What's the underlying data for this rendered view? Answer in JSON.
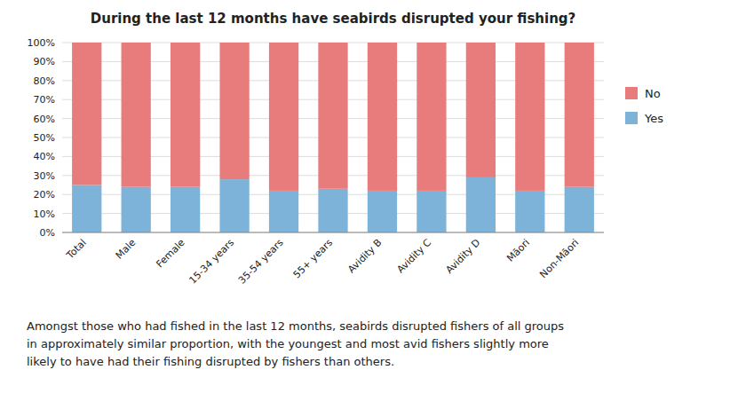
{
  "chart_data": {
    "type": "bar",
    "stacked": true,
    "title": "During the last 12 months have seabirds disrupted your fishing?",
    "categories": [
      "Total",
      "Male",
      "Female",
      "15-34 years",
      "35-54 years",
      "55+ years",
      "Avidity B",
      "Avidity C",
      "Avidity D",
      "Māori",
      "Non-Māori"
    ],
    "series": [
      {
        "name": "Yes",
        "color": "#7db3d8",
        "values": [
          25,
          24,
          24,
          28,
          22,
          23,
          22,
          22,
          29,
          22,
          24
        ]
      },
      {
        "name": "No",
        "color": "#e87c7c",
        "values": [
          75,
          76,
          76,
          72,
          78,
          77,
          78,
          78,
          71,
          78,
          76
        ]
      }
    ],
    "ylim": [
      0,
      100
    ],
    "yticks": [
      {
        "value": 0,
        "label": "0%"
      },
      {
        "value": 10,
        "label": "10%"
      },
      {
        "value": 20,
        "label": "20%"
      },
      {
        "value": 30,
        "label": "30%"
      },
      {
        "value": 40,
        "label": "40%"
      },
      {
        "value": 50,
        "label": "50%"
      },
      {
        "value": 60,
        "label": "60%"
      },
      {
        "value": 70,
        "label": "70%"
      },
      {
        "value": 80,
        "label": "80%"
      },
      {
        "value": 90,
        "label": "90%"
      },
      {
        "value": 100,
        "label": "100%"
      }
    ],
    "grid": true,
    "legend": "right",
    "annotations": [
      "Amongst those who had fished in the last 12 months, seabirds disrupted fishers of all groups\nin approximately similar proportion, with the youngest and most avid fishers slightly more\nlikely to have had their fishing disrupted by fishers than others."
    ]
  }
}
